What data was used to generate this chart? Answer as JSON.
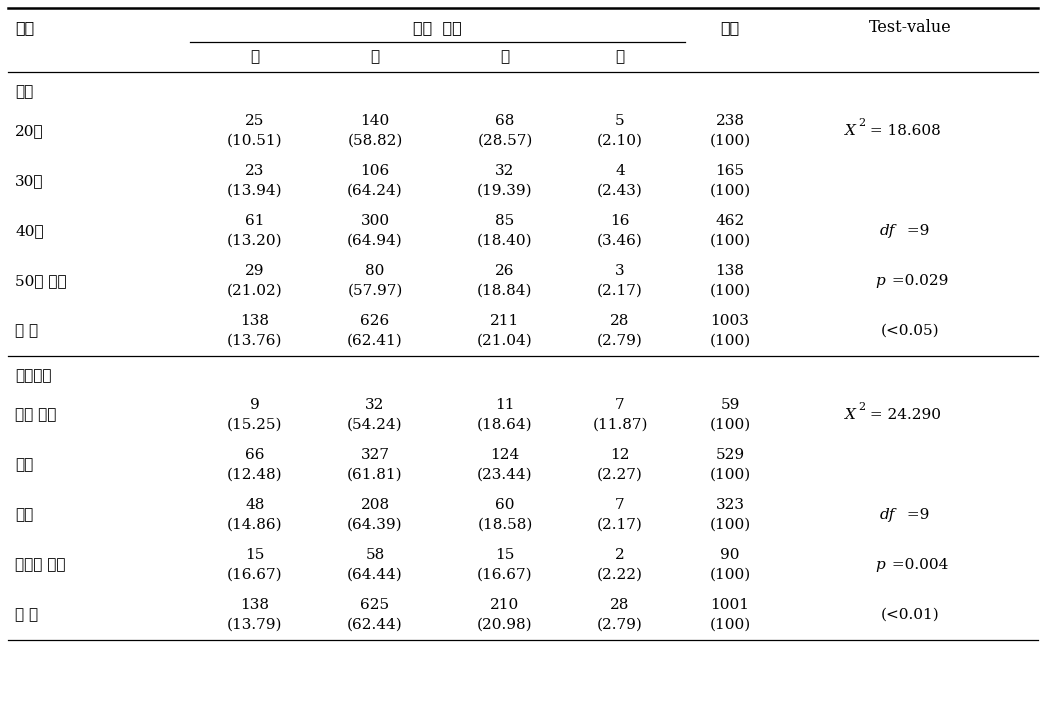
{
  "sections": [
    {
      "section_label": "연령",
      "rows": [
        {
          "label": "20대",
          "values": [
            "25",
            "140",
            "68",
            "5",
            "238"
          ],
          "pcts": [
            "(10.51)",
            "(58.82)",
            "(28.57)",
            "(2.10)",
            "(100)"
          ],
          "test_lines": [
            "χ² = 18.608"
          ]
        },
        {
          "label": "30대",
          "values": [
            "23",
            "106",
            "32",
            "4",
            "165"
          ],
          "pcts": [
            "(13.94)",
            "(64.24)",
            "(19.39)",
            "(2.43)",
            "(100)"
          ],
          "test_lines": []
        },
        {
          "label": "40대",
          "values": [
            "61",
            "300",
            "85",
            "16",
            "462"
          ],
          "pcts": [
            "(13.20)",
            "(64.94)",
            "(18.40)",
            "(3.46)",
            "(100)"
          ],
          "test_lines": [
            "df =9"
          ]
        },
        {
          "label": "50대 이상",
          "values": [
            "29",
            "80",
            "26",
            "3",
            "138"
          ],
          "pcts": [
            "(21.02)",
            "(57.97)",
            "(18.84)",
            "(2.17)",
            "(100)"
          ],
          "test_lines": [
            "p =0.029"
          ]
        },
        {
          "label": "전 체",
          "values": [
            "138",
            "626",
            "211",
            "28",
            "1003"
          ],
          "pcts": [
            "(13.76)",
            "(62.41)",
            "(21.04)",
            "(2.79)",
            "(100)"
          ],
          "test_lines": [
            "(<0.05)"
          ]
        }
      ]
    },
    {
      "section_label": "교육정도",
      "rows": [
        {
          "label": "중졸 이하",
          "values": [
            "9",
            "32",
            "11",
            "7",
            "59"
          ],
          "pcts": [
            "(15.25)",
            "(54.24)",
            "(18.64)",
            "(11.87)",
            "(100)"
          ],
          "test_lines": [
            "χ² = 24.290"
          ]
        },
        {
          "label": "고졸",
          "values": [
            "66",
            "327",
            "124",
            "12",
            "529"
          ],
          "pcts": [
            "(12.48)",
            "(61.81)",
            "(23.44)",
            "(2.27)",
            "(100)"
          ],
          "test_lines": []
        },
        {
          "label": "대졸",
          "values": [
            "48",
            "208",
            "60",
            "7",
            "323"
          ],
          "pcts": [
            "(14.86)",
            "(64.39)",
            "(18.58)",
            "(2.17)",
            "(100)"
          ],
          "test_lines": [
            "df =9"
          ]
        },
        {
          "label": "대학원 이상",
          "values": [
            "15",
            "58",
            "15",
            "2",
            "90"
          ],
          "pcts": [
            "(16.67)",
            "(64.44)",
            "(16.67)",
            "(2.22)",
            "(100)"
          ],
          "test_lines": [
            "p =0.004"
          ]
        },
        {
          "label": "전 체",
          "values": [
            "138",
            "625",
            "210",
            "28",
            "1001"
          ],
          "pcts": [
            "(13.79)",
            "(62.44)",
            "(20.98)",
            "(2.79)",
            "(100)"
          ],
          "test_lines": [
            "(<0.01)"
          ]
        }
      ]
    }
  ],
  "col_headers": [
    "①",
    "②",
    "③",
    "④"
  ],
  "header_group": "설문  문항",
  "header_gubn": "구분",
  "header_total": "전체",
  "header_test": "Test-value",
  "bg_color": "white",
  "text_color": "black"
}
